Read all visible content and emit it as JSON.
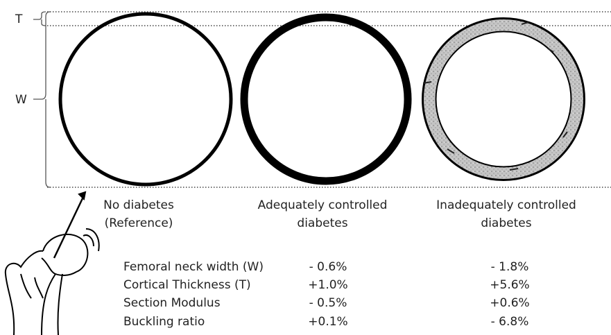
{
  "dimensions": {
    "thickness": "T",
    "width": "W"
  },
  "groups": [
    {
      "lines": [
        "No diabetes",
        "(Reference)"
      ]
    },
    {
      "lines": [
        "Adequately controlled",
        "diabetes"
      ]
    },
    {
      "lines": [
        "Inadequately controlled",
        "diabetes"
      ]
    }
  ],
  "table": {
    "rows": [
      [
        "Femoral neck width (W)",
        "- 0.6%",
        "- 1.8%"
      ],
      [
        "Cortical Thickness (T)",
        "+1.0%",
        "+5.6%"
      ],
      [
        "Section Modulus",
        "- 0.5%",
        "+0.6%"
      ],
      [
        "Buckling ratio",
        "+0.1%",
        "- 6.8%"
      ]
    ]
  }
}
